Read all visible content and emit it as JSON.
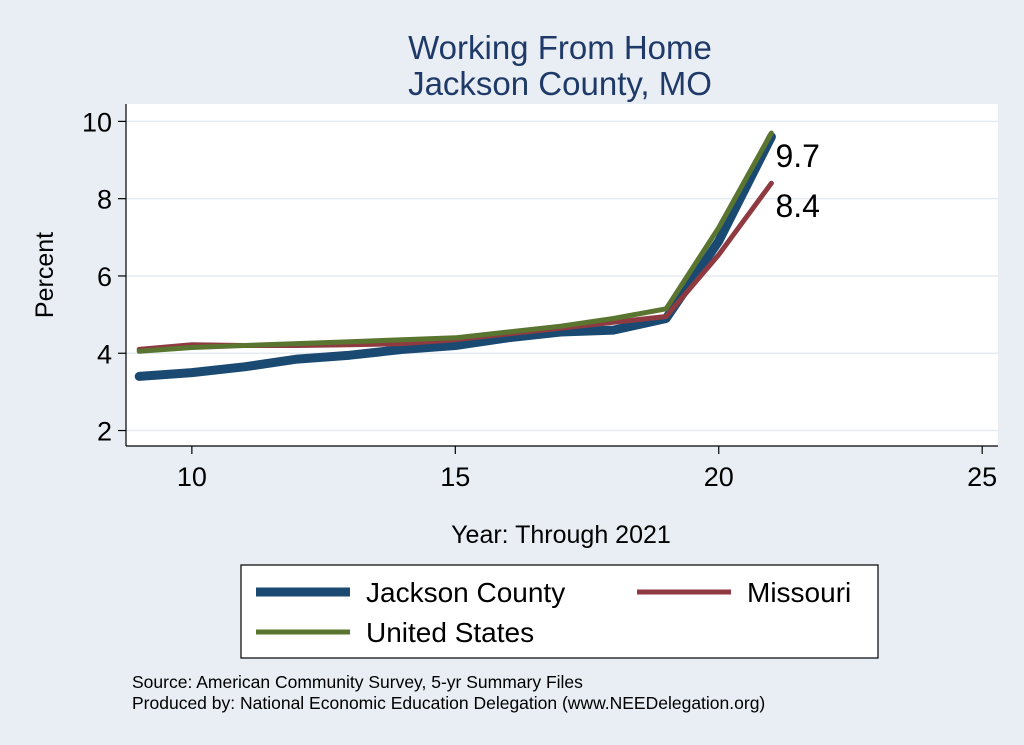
{
  "chart_data": {
    "type": "line",
    "title": [
      "Working From Home",
      "Jackson County, MO"
    ],
    "xlabel": "Year: Through 2021",
    "ylabel": "Percent",
    "xlim": [
      8.75,
      25.3
    ],
    "ylim": [
      1.6,
      10.45
    ],
    "xticks": [
      10,
      15,
      20,
      25
    ],
    "yticks": [
      2,
      4,
      6,
      8,
      10
    ],
    "grid": "horizontal",
    "legend_position": "bottom",
    "series": [
      {
        "name": "Jackson County",
        "color": "#1a4a72",
        "x": [
          9,
          10,
          11,
          12,
          13,
          14,
          15,
          16,
          17,
          18,
          19,
          20,
          21
        ],
        "y": [
          3.4,
          3.5,
          3.65,
          3.85,
          3.95,
          4.1,
          4.2,
          4.4,
          4.55,
          4.6,
          4.9,
          6.9,
          9.6
        ]
      },
      {
        "name": "Missouri",
        "color": "#8e3a40",
        "x": [
          9,
          10,
          11,
          12,
          13,
          14,
          15,
          16,
          17,
          18,
          19,
          20,
          21
        ],
        "y": [
          4.1,
          4.22,
          4.2,
          4.2,
          4.22,
          4.25,
          4.35,
          4.5,
          4.65,
          4.8,
          4.95,
          6.55,
          8.4
        ]
      },
      {
        "name": "United States",
        "color": "#5a7530",
        "x": [
          9,
          10,
          11,
          12,
          13,
          14,
          15,
          16,
          17,
          18,
          19,
          20,
          21
        ],
        "y": [
          4.05,
          4.15,
          4.2,
          4.25,
          4.3,
          4.35,
          4.4,
          4.55,
          4.7,
          4.9,
          5.15,
          7.25,
          9.7
        ]
      }
    ],
    "end_labels": [
      {
        "text": "9.7",
        "x": 21,
        "y": 9.7
      },
      {
        "text": "8.4",
        "x": 21,
        "y": 8.4
      }
    ],
    "notes": [
      "Source: American Community Survey, 5-yr Summary Files",
      "Produced by: National Economic Education Delegation (www.NEEDelegation.org)"
    ]
  }
}
